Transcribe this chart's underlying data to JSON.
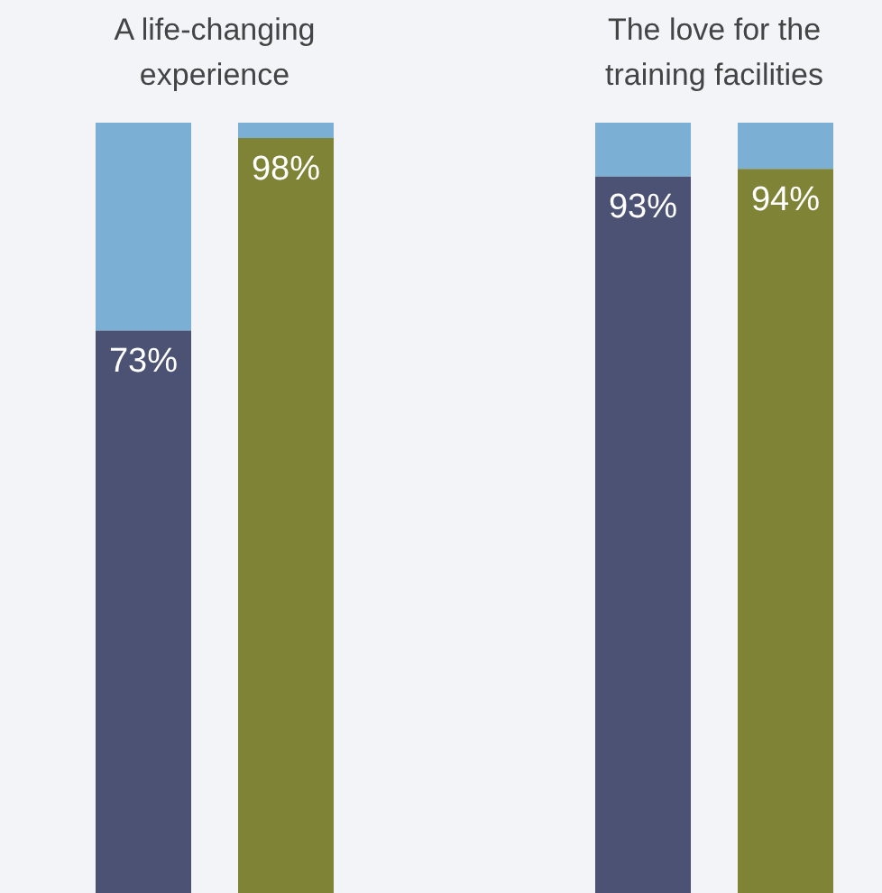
{
  "chart_data": [
    {
      "type": "bar",
      "title": "A life-changing experience",
      "categories": [
        null,
        null
      ],
      "stacked": true,
      "ylim": [
        0,
        100
      ],
      "tick_labels": false,
      "legend": false,
      "series": [
        {
          "colors": [
            "#4b5273",
            "#7f8335"
          ],
          "values": [
            73,
            98
          ],
          "value_labels": [
            "73%",
            "98%"
          ]
        },
        {
          "color": "#7bafd4",
          "values": [
            27,
            2
          ]
        }
      ]
    },
    {
      "type": "bar",
      "title": "The love for the training facilities",
      "categories": [
        null,
        null
      ],
      "stacked": true,
      "ylim": [
        0,
        100
      ],
      "tick_labels": false,
      "legend": false,
      "series": [
        {
          "colors": [
            "#4b5273",
            "#7f8335"
          ],
          "values": [
            93,
            94
          ],
          "value_labels": [
            "93%",
            "94%"
          ]
        },
        {
          "color": "#7bafd4",
          "values": [
            7,
            6
          ]
        }
      ]
    }
  ]
}
